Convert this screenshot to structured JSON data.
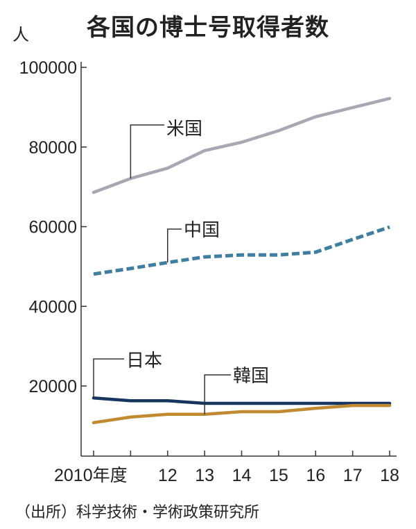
{
  "chart_data": {
    "type": "line",
    "title": "各国の博士号取得者数",
    "ylabel": "人",
    "xlabel": "",
    "source": "（出所）科学技術・学術政策研究所",
    "x": [
      2010,
      2011,
      2012,
      2013,
      2014,
      2015,
      2016,
      2017,
      2018
    ],
    "x_tick_labels": [
      "2010年度",
      "",
      "12",
      "13",
      "14",
      "15",
      "16",
      "17",
      "18"
    ],
    "y_ticks": [
      20000,
      40000,
      60000,
      80000,
      100000
    ],
    "y_tick_labels": [
      "20000",
      "40000",
      "60000",
      "80000",
      "100000"
    ],
    "ylim": [
      2400,
      100000
    ],
    "grid": false,
    "legend": "direct labels",
    "series": [
      {
        "name": "米国",
        "color": "#aaa7b3",
        "style": "solid",
        "label_year": 2011,
        "values": [
          68600,
          72100,
          74700,
          79100,
          81200,
          84100,
          87600,
          89900,
          92200
        ]
      },
      {
        "name": "中国",
        "color": "#3f7ea0",
        "style": "dashed",
        "label_year": 2012,
        "values": [
          48100,
          49500,
          51000,
          52400,
          52900,
          52900,
          53600,
          56800,
          59900
        ]
      },
      {
        "name": "日本",
        "color": "#16355f",
        "style": "solid",
        "label_year": 2010,
        "values": [
          17000,
          16300,
          16300,
          15650,
          15650,
          15650,
          15650,
          15650,
          15650
        ]
      },
      {
        "name": "韓国",
        "color": "#c08a30",
        "style": "solid",
        "label_year": 2013,
        "values": [
          10800,
          12200,
          12900,
          12900,
          13550,
          13550,
          14400,
          15100,
          15100
        ]
      }
    ]
  }
}
